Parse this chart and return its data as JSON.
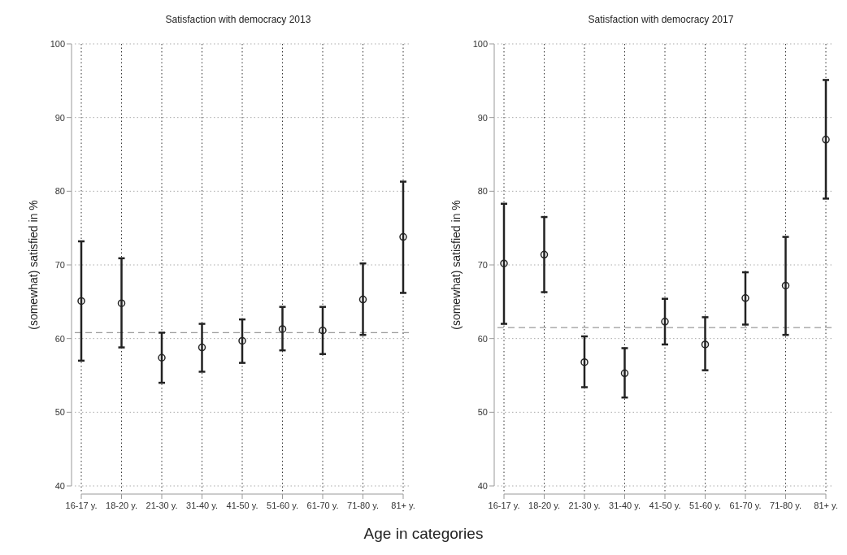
{
  "chart_data": [
    {
      "type": "scatter",
      "title": "Satisfaction with democracy 2013",
      "xlabel": "Age in categories",
      "ylabel": "(somewhat) satisfied in %",
      "categories": [
        "16-17 y.",
        "18-20 y.",
        "21-30 y.",
        "31-40 y.",
        "41-50 y.",
        "51-60 y.",
        "61-70 y.",
        "71-80 y.",
        "81+ y."
      ],
      "series": [
        {
          "color": "#222222",
          "values": [
            65.1,
            64.8,
            57.4,
            58.8,
            59.7,
            61.3,
            61.1,
            65.3,
            73.8
          ],
          "errors": [
            [
              57,
              73.2
            ],
            [
              58.8,
              70.9
            ],
            [
              54,
              60.8
            ],
            [
              55.5,
              62
            ],
            [
              56.7,
              62.6
            ],
            [
              58.4,
              64.3
            ],
            [
              57.9,
              64.3
            ],
            [
              60.5,
              70.2
            ],
            [
              66.2,
              81.3
            ]
          ]
        }
      ],
      "ylim": [
        40,
        100
      ],
      "yticks": [
        40,
        50,
        60,
        70,
        80,
        90,
        100
      ],
      "grid": true,
      "marker": "circle",
      "ref_lines": [
        {
          "axis": "y",
          "value": 60.8,
          "color": "#999999",
          "line_style": "dashed"
        }
      ]
    },
    {
      "type": "scatter",
      "title": "Satisfaction with democracy 2017",
      "ylabel": "(somewhat) satisfied in %",
      "categories": [
        "16-17 y.",
        "18-20 y.",
        "21-30 y.",
        "31-40 y.",
        "41-50 y.",
        "51-60 y.",
        "61-70 y.",
        "71-80 y.",
        "81+ y."
      ],
      "series": [
        {
          "color": "#222222",
          "values": [
            70.2,
            71.4,
            56.8,
            55.3,
            62.3,
            59.2,
            65.5,
            67.2,
            87
          ],
          "errors": [
            [
              62,
              78.3
            ],
            [
              66.3,
              76.5
            ],
            [
              53.4,
              60.3
            ],
            [
              52,
              58.7
            ],
            [
              59.2,
              65.4
            ],
            [
              55.7,
              62.9
            ],
            [
              61.9,
              69
            ],
            [
              60.5,
              73.8
            ],
            [
              79,
              95.1
            ]
          ]
        }
      ],
      "ylim": [
        40,
        100
      ],
      "yticks": [
        40,
        50,
        60,
        70,
        80,
        90,
        100
      ],
      "grid": true,
      "marker": "circle",
      "ref_lines": [
        {
          "axis": "y",
          "value": 61.5,
          "color": "#999999",
          "line_style": "dashed"
        }
      ]
    }
  ]
}
